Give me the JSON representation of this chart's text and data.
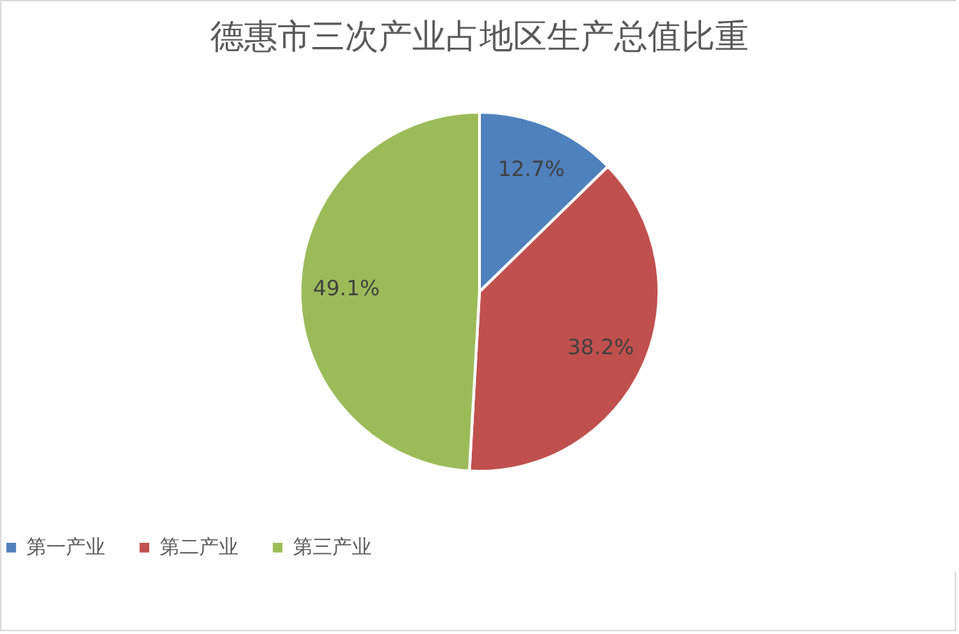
{
  "chart_data": {
    "type": "pie",
    "title": "德惠市三次产业占地区生产总值比重",
    "categories": [
      "第一产业",
      "第二产业",
      "第三产业"
    ],
    "values": [
      12.7,
      38.2,
      49.1
    ],
    "colors": [
      "#4f81bd",
      "#c0504d",
      "#9bbb59"
    ],
    "value_labels": [
      "12.7%",
      "38.2%",
      "49.1%"
    ],
    "legend": "bottom"
  }
}
